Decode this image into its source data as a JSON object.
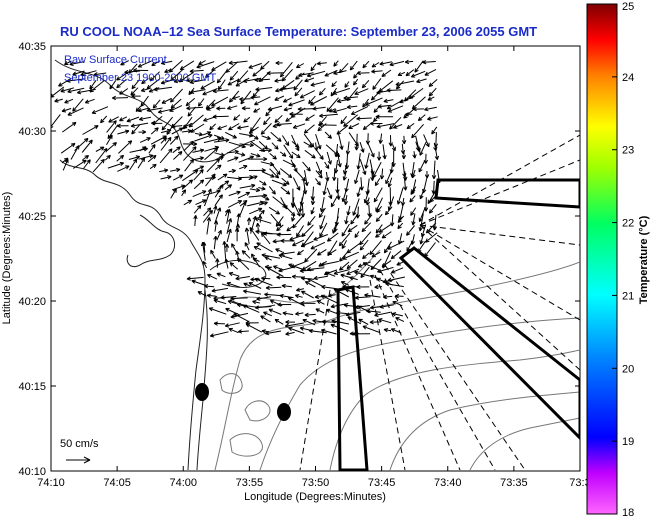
{
  "title": "RU COOL  NOAA–12  Sea Surface Temperature:  September 23, 2006 2055 GMT",
  "legend": {
    "line1": "Raw Surface Current",
    "line2": "September 23 1900-2000 GMT"
  },
  "scale": {
    "label": "50 cm/s"
  },
  "map": {
    "x_label": "Longitude (Degrees:Minutes)",
    "y_label": "Latitude (Degrees:Minutes)",
    "x_ticks": [
      "74:10",
      "74:05",
      "74:00",
      "73:55",
      "73:50",
      "73:45",
      "73:40",
      "73:35",
      "73:3"
    ],
    "y_ticks": [
      "40:35",
      "40:30",
      "40:25",
      "40:20",
      "40:15",
      "40:10"
    ]
  },
  "colorbar": {
    "label": "Temperature (°C)",
    "min": 18,
    "max": 25,
    "ticks": [
      "25",
      "24",
      "23",
      "22",
      "21",
      "20",
      "19",
      "18"
    ],
    "colors": [
      "#ff00ff",
      "#0000ff",
      "#00ffff",
      "#00ff00",
      "#ffff00",
      "#ff8000",
      "#ff0000",
      "#800000"
    ]
  }
}
